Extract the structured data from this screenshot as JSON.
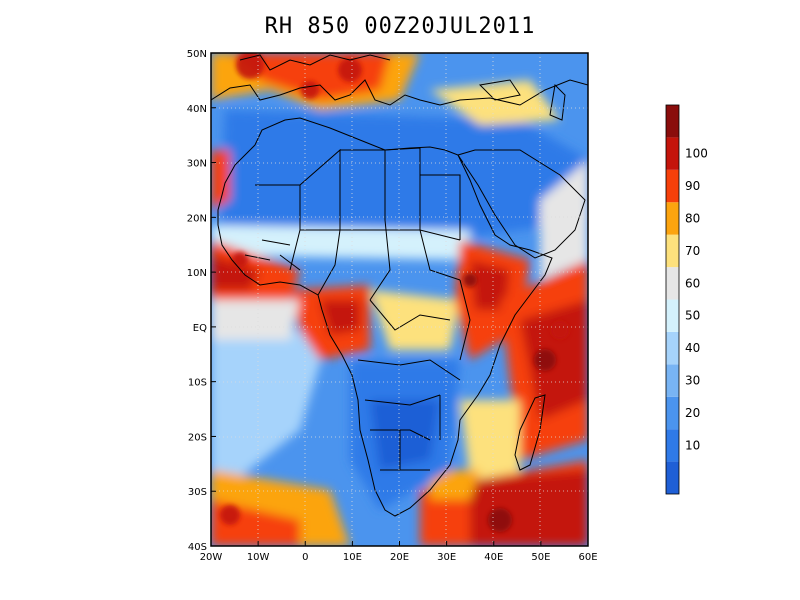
{
  "title": "RH 850 00Z20JUL2011",
  "axes": {
    "lon_ticks": [
      {
        "value": -20,
        "label": "20W"
      },
      {
        "value": -10,
        "label": "10W"
      },
      {
        "value": 0,
        "label": "0"
      },
      {
        "value": 10,
        "label": "10E"
      },
      {
        "value": 20,
        "label": "20E"
      },
      {
        "value": 30,
        "label": "30E"
      },
      {
        "value": 40,
        "label": "40E"
      },
      {
        "value": 50,
        "label": "50E"
      },
      {
        "value": 60,
        "label": "60E"
      }
    ],
    "lat_ticks": [
      {
        "value": 50,
        "label": "50N"
      },
      {
        "value": 40,
        "label": "40N"
      },
      {
        "value": 30,
        "label": "30N"
      },
      {
        "value": 20,
        "label": "20N"
      },
      {
        "value": 10,
        "label": "10N"
      },
      {
        "value": 0,
        "label": "EQ"
      },
      {
        "value": -10,
        "label": "10S"
      },
      {
        "value": -20,
        "label": "20S"
      },
      {
        "value": -30,
        "label": "30S"
      },
      {
        "value": -40,
        "label": "40S"
      }
    ],
    "lon_range": [
      -20,
      60
    ],
    "lat_range": [
      -40,
      50
    ]
  },
  "colorbar": {
    "bins": [
      {
        "label": "",
        "color": "#1f5fd6"
      },
      {
        "label": "10",
        "color": "#2f7ae8"
      },
      {
        "label": "20",
        "color": "#4b94ee"
      },
      {
        "label": "30",
        "color": "#78b4f4"
      },
      {
        "label": "40",
        "color": "#a6d3fb"
      },
      {
        "label": "50",
        "color": "#d4f1fc"
      },
      {
        "label": "60",
        "color": "#e6e6e6"
      },
      {
        "label": "70",
        "color": "#fde17d"
      },
      {
        "label": "80",
        "color": "#fca40f"
      },
      {
        "label": "90",
        "color": "#f6400a"
      },
      {
        "label": "100",
        "color": "#c4140b"
      },
      {
        "label": "",
        "color": "#8a0d0c"
      }
    ]
  }
}
